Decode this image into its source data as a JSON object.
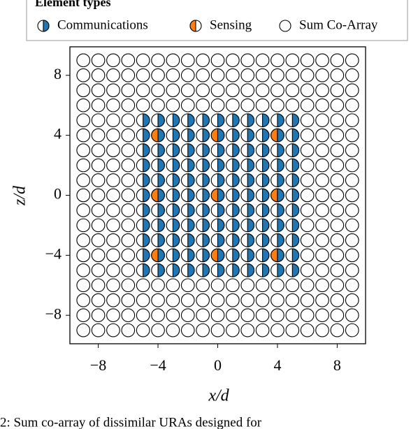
{
  "chart_data": {
    "type": "scatter",
    "legend_title": "Element types",
    "xlabel": "x/d",
    "ylabel": "z/d",
    "caption": "2: Sum co-array of dissimilar URAs designed for",
    "xlim": [
      -9.9,
      9.9
    ],
    "ylim": [
      -9.9,
      9.9
    ],
    "xticks": [
      {
        "value": -8,
        "label": "−8"
      },
      {
        "value": -4,
        "label": "−4"
      },
      0,
      4,
      8
    ],
    "yticks": [
      {
        "value": -8,
        "label": "−8"
      },
      {
        "value": -4,
        "label": "−4"
      },
      0,
      4,
      8
    ],
    "series": [
      {
        "name": "Communications",
        "color": "#1f77b4",
        "marker": "right-half",
        "x": [
          -5,
          -4,
          -3,
          -2,
          -1,
          0,
          1,
          2,
          3,
          4,
          5,
          -5,
          -4,
          -3,
          -2,
          -1,
          0,
          1,
          2,
          3,
          4,
          5,
          -5,
          -4,
          -3,
          -2,
          -1,
          0,
          1,
          2,
          3,
          4,
          5,
          -5,
          -4,
          -3,
          -2,
          -1,
          0,
          1,
          2,
          3,
          4,
          5,
          -5,
          -4,
          -3,
          -2,
          -1,
          0,
          1,
          2,
          3,
          4,
          5,
          -5,
          -4,
          -3,
          -2,
          -1,
          0,
          1,
          2,
          3,
          4,
          5,
          -5,
          -4,
          -3,
          -2,
          -1,
          0,
          1,
          2,
          3,
          4,
          5,
          -5,
          -4,
          -3,
          -2,
          -1,
          0,
          1,
          2,
          3,
          4,
          5,
          -5,
          -4,
          -3,
          -2,
          -1,
          0,
          1,
          2,
          3,
          4,
          5,
          -5,
          -4,
          -3,
          -2,
          -1,
          0,
          1,
          2,
          3,
          4,
          5,
          -5,
          -4,
          -3,
          -2,
          -1,
          0,
          1,
          2,
          3,
          4,
          5
        ],
        "y": [
          5,
          5,
          5,
          5,
          5,
          5,
          5,
          5,
          5,
          5,
          5,
          4,
          4,
          4,
          4,
          4,
          4,
          4,
          4,
          4,
          4,
          4,
          3,
          3,
          3,
          3,
          3,
          3,
          3,
          3,
          3,
          3,
          3,
          2,
          2,
          2,
          2,
          2,
          2,
          2,
          2,
          2,
          2,
          2,
          1,
          1,
          1,
          1,
          1,
          1,
          1,
          1,
          1,
          1,
          1,
          0,
          0,
          0,
          0,
          0,
          0,
          0,
          0,
          0,
          0,
          0,
          -1,
          -1,
          -1,
          -1,
          -1,
          -1,
          -1,
          -1,
          -1,
          -1,
          -1,
          -2,
          -2,
          -2,
          -2,
          -2,
          -2,
          -2,
          -2,
          -2,
          -2,
          -2,
          -3,
          -3,
          -3,
          -3,
          -3,
          -3,
          -3,
          -3,
          -3,
          -3,
          -3,
          -4,
          -4,
          -4,
          -4,
          -4,
          -4,
          -4,
          -4,
          -4,
          -4,
          -4,
          -5,
          -5,
          -5,
          -5,
          -5,
          -5,
          -5,
          -5,
          -5,
          -5,
          -5
        ]
      },
      {
        "name": "Sensing",
        "color": "#ff7f0e",
        "marker": "left-half",
        "x": [
          -4,
          0,
          4,
          -4,
          0,
          4,
          -4,
          0,
          4
        ],
        "y": [
          4,
          4,
          4,
          0,
          0,
          0,
          -4,
          -4,
          -4
        ]
      },
      {
        "name": "Sum Co-Array",
        "color": "#ffffff",
        "marker": "circle",
        "x": [
          -9,
          -8,
          -7,
          -6,
          -5,
          -4,
          -3,
          -2,
          -1,
          0,
          1,
          2,
          3,
          4,
          5,
          6,
          7,
          8,
          9,
          -9,
          -8,
          -7,
          -6,
          -5,
          -4,
          -3,
          -2,
          -1,
          0,
          1,
          2,
          3,
          4,
          5,
          6,
          7,
          8,
          9,
          -9,
          -8,
          -7,
          -6,
          -5,
          -4,
          -3,
          -2,
          -1,
          0,
          1,
          2,
          3,
          4,
          5,
          6,
          7,
          8,
          9,
          -9,
          -8,
          -7,
          -6,
          -5,
          -4,
          -3,
          -2,
          -1,
          0,
          1,
          2,
          3,
          4,
          5,
          6,
          7,
          8,
          9,
          -9,
          -8,
          -7,
          -6,
          -5,
          -4,
          -3,
          -2,
          -1,
          0,
          1,
          2,
          3,
          4,
          5,
          6,
          7,
          8,
          9,
          -9,
          -8,
          -7,
          -6,
          -5,
          -4,
          -3,
          -2,
          -1,
          0,
          1,
          2,
          3,
          4,
          5,
          6,
          7,
          8,
          9,
          -9,
          -8,
          -7,
          -6,
          -5,
          -4,
          -3,
          -2,
          -1,
          0,
          1,
          2,
          3,
          4,
          5,
          6,
          7,
          8,
          9,
          -9,
          -8,
          -7,
          -6,
          -5,
          -4,
          -3,
          -2,
          -1,
          0,
          1,
          2,
          3,
          4,
          5,
          6,
          7,
          8,
          9,
          -9,
          -8,
          -7,
          -6,
          -5,
          -4,
          -3,
          -2,
          -1,
          0,
          1,
          2,
          3,
          4,
          5,
          6,
          7,
          8,
          9,
          -9,
          -8,
          -7,
          -6,
          -5,
          -4,
          -3,
          -2,
          -1,
          0,
          1,
          2,
          3,
          4,
          5,
          6,
          7,
          8,
          9,
          -9,
          -8,
          -7,
          -6,
          -5,
          -4,
          -3,
          -2,
          -1,
          0,
          1,
          2,
          3,
          4,
          5,
          6,
          7,
          8,
          9,
          -9,
          -8,
          -7,
          -6,
          -5,
          -4,
          -3,
          -2,
          -1,
          0,
          1,
          2,
          3,
          4,
          5,
          6,
          7,
          8,
          9,
          -9,
          -8,
          -7,
          -6,
          -5,
          -4,
          -3,
          -2,
          -1,
          0,
          1,
          2,
          3,
          4,
          5,
          6,
          7,
          8,
          9,
          -9,
          -8,
          -7,
          -6,
          -5,
          -4,
          -3,
          -2,
          -1,
          0,
          1,
          2,
          3,
          4,
          5,
          6,
          7,
          8,
          9,
          -9,
          -8,
          -7,
          -6,
          -5,
          -4,
          -3,
          -2,
          -1,
          0,
          1,
          2,
          3,
          4,
          5,
          6,
          7,
          8,
          9,
          -9,
          -8,
          -7,
          -6,
          -5,
          -4,
          -3,
          -2,
          -1,
          0,
          1,
          2,
          3,
          4,
          5,
          6,
          7,
          8,
          9,
          -9,
          -8,
          -7,
          -6,
          -5,
          -4,
          -3,
          -2,
          -1,
          0,
          1,
          2,
          3,
          4,
          5,
          6,
          7,
          8,
          9,
          -9,
          -8,
          -7,
          -6,
          -5,
          -4,
          -3,
          -2,
          -1,
          0,
          1,
          2,
          3,
          4,
          5,
          6,
          7,
          8,
          9,
          -9,
          -8,
          -7,
          -6,
          -5,
          -4,
          -3,
          -2,
          -1,
          0,
          1,
          2,
          3,
          4,
          5,
          6,
          7,
          8,
          9
        ],
        "y": [
          9,
          9,
          9,
          9,
          9,
          9,
          9,
          9,
          9,
          9,
          9,
          9,
          9,
          9,
          9,
          9,
          9,
          9,
          9,
          8,
          8,
          8,
          8,
          8,
          8,
          8,
          8,
          8,
          8,
          8,
          8,
          8,
          8,
          8,
          8,
          8,
          8,
          8,
          7,
          7,
          7,
          7,
          7,
          7,
          7,
          7,
          7,
          7,
          7,
          7,
          7,
          7,
          7,
          7,
          7,
          7,
          7,
          6,
          6,
          6,
          6,
          6,
          6,
          6,
          6,
          6,
          6,
          6,
          6,
          6,
          6,
          6,
          6,
          6,
          6,
          6,
          5,
          5,
          5,
          5,
          5,
          5,
          5,
          5,
          5,
          5,
          5,
          5,
          5,
          5,
          5,
          5,
          5,
          5,
          5,
          4,
          4,
          4,
          4,
          4,
          4,
          4,
          4,
          4,
          4,
          4,
          4,
          4,
          4,
          4,
          4,
          4,
          4,
          4,
          3,
          3,
          3,
          3,
          3,
          3,
          3,
          3,
          3,
          3,
          3,
          3,
          3,
          3,
          3,
          3,
          3,
          3,
          3,
          2,
          2,
          2,
          2,
          2,
          2,
          2,
          2,
          2,
          2,
          2,
          2,
          2,
          2,
          2,
          2,
          2,
          2,
          2,
          1,
          1,
          1,
          1,
          1,
          1,
          1,
          1,
          1,
          1,
          1,
          1,
          1,
          1,
          1,
          1,
          1,
          1,
          1,
          0,
          0,
          0,
          0,
          0,
          0,
          0,
          0,
          0,
          0,
          0,
          0,
          0,
          0,
          0,
          0,
          0,
          0,
          0,
          -1,
          -1,
          -1,
          -1,
          -1,
          -1,
          -1,
          -1,
          -1,
          -1,
          -1,
          -1,
          -1,
          -1,
          -1,
          -1,
          -1,
          -1,
          -1,
          -2,
          -2,
          -2,
          -2,
          -2,
          -2,
          -2,
          -2,
          -2,
          -2,
          -2,
          -2,
          -2,
          -2,
          -2,
          -2,
          -2,
          -2,
          -2,
          -3,
          -3,
          -3,
          -3,
          -3,
          -3,
          -3,
          -3,
          -3,
          -3,
          -3,
          -3,
          -3,
          -3,
          -3,
          -3,
          -3,
          -3,
          -3,
          -4,
          -4,
          -4,
          -4,
          -4,
          -4,
          -4,
          -4,
          -4,
          -4,
          -4,
          -4,
          -4,
          -4,
          -4,
          -4,
          -4,
          -4,
          -4,
          -5,
          -5,
          -5,
          -5,
          -5,
          -5,
          -5,
          -5,
          -5,
          -5,
          -5,
          -5,
          -5,
          -5,
          -5,
          -5,
          -5,
          -5,
          -5,
          -6,
          -6,
          -6,
          -6,
          -6,
          -6,
          -6,
          -6,
          -6,
          -6,
          -6,
          -6,
          -6,
          -6,
          -6,
          -6,
          -6,
          -6,
          -6,
          -7,
          -7,
          -7,
          -7,
          -7,
          -7,
          -7,
          -7,
          -7,
          -7,
          -7,
          -7,
          -7,
          -7,
          -7,
          -7,
          -7,
          -7,
          -7,
          -8,
          -8,
          -8,
          -8,
          -8,
          -8,
          -8,
          -8,
          -8,
          -8,
          -8,
          -8,
          -8,
          -8,
          -8,
          -8,
          -8,
          -8,
          -8,
          -9,
          -9,
          -9,
          -9,
          -9,
          -9,
          -9,
          -9,
          -9,
          -9,
          -9,
          -9,
          -9,
          -9,
          -9,
          -9,
          -9,
          -9,
          -9
        ]
      }
    ]
  }
}
